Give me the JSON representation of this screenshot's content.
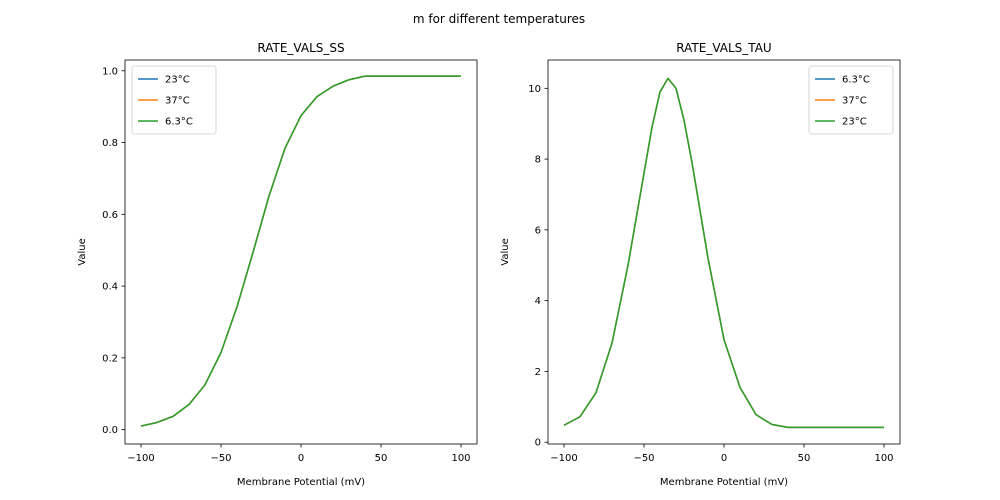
{
  "figure_title": "m for different temperatures",
  "chart_data": [
    {
      "type": "line",
      "title": "RATE_VALS_SS",
      "xlabel": "Membrane Potential (mV)",
      "ylabel": "Value",
      "xlim": [
        -110,
        110
      ],
      "ylim": [
        -0.04,
        1.03
      ],
      "x_ticks": [
        -100,
        -50,
        0,
        50,
        100
      ],
      "x_tick_labels": [
        "−100",
        "−50",
        "0",
        "50",
        "100"
      ],
      "y_ticks": [
        0.0,
        0.2,
        0.4,
        0.6,
        0.8,
        1.0
      ],
      "y_tick_labels": [
        "0.0",
        "0.2",
        "0.4",
        "0.6",
        "0.8",
        "1.0"
      ],
      "legend_position": "upper-left",
      "x": [
        -100,
        -90,
        -80,
        -70,
        -60,
        -50,
        -40,
        -30,
        -20,
        -10,
        0,
        10,
        20,
        30,
        40,
        50,
        60,
        70,
        80,
        90,
        100
      ],
      "series": [
        {
          "name": "23°C",
          "color": "#1f77b4",
          "values": [
            0.01,
            0.02,
            0.037,
            0.07,
            0.125,
            0.215,
            0.342,
            0.494,
            0.651,
            0.784,
            0.875,
            0.928,
            0.957,
            0.975,
            0.985,
            0.985,
            0.985,
            0.985,
            0.985,
            0.985,
            0.985
          ]
        },
        {
          "name": "37°C",
          "color": "#ff7f0e",
          "values": [
            0.01,
            0.02,
            0.037,
            0.07,
            0.125,
            0.215,
            0.342,
            0.494,
            0.651,
            0.784,
            0.875,
            0.928,
            0.957,
            0.975,
            0.985,
            0.985,
            0.985,
            0.985,
            0.985,
            0.985,
            0.985
          ]
        },
        {
          "name": "6.3°C",
          "color": "#2ca02c",
          "values": [
            0.01,
            0.02,
            0.037,
            0.07,
            0.125,
            0.215,
            0.342,
            0.494,
            0.651,
            0.784,
            0.875,
            0.928,
            0.957,
            0.975,
            0.985,
            0.985,
            0.985,
            0.985,
            0.985,
            0.985,
            0.985
          ]
        }
      ]
    },
    {
      "type": "line",
      "title": "RATE_VALS_TAU",
      "xlabel": "Membrane Potential (mV)",
      "ylabel": "Value",
      "xlim": [
        -110,
        110
      ],
      "ylim": [
        -0.05,
        10.8
      ],
      "x_ticks": [
        -100,
        -50,
        0,
        50,
        100
      ],
      "x_tick_labels": [
        "−100",
        "−50",
        "0",
        "50",
        "100"
      ],
      "y_ticks": [
        0,
        2,
        4,
        6,
        8,
        10
      ],
      "y_tick_labels": [
        "0",
        "2",
        "4",
        "6",
        "8",
        "10"
      ],
      "legend_position": "upper-right",
      "x": [
        -100,
        -90,
        -80,
        -70,
        -60,
        -50,
        -45,
        -40,
        -35,
        -30,
        -25,
        -20,
        -10,
        0,
        10,
        20,
        30,
        40,
        50,
        60,
        70,
        80,
        90,
        100
      ],
      "series": [
        {
          "name": "6.3°C",
          "color": "#1f77b4",
          "values": [
            0.48,
            0.72,
            1.4,
            2.8,
            5.0,
            7.6,
            8.9,
            9.9,
            10.28,
            10.0,
            9.1,
            7.9,
            5.2,
            2.9,
            1.55,
            0.78,
            0.5,
            0.42,
            0.42,
            0.42,
            0.42,
            0.42,
            0.42,
            0.42
          ]
        },
        {
          "name": "37°C",
          "color": "#ff7f0e",
          "values": [
            0.48,
            0.72,
            1.4,
            2.8,
            5.0,
            7.6,
            8.9,
            9.9,
            10.28,
            10.0,
            9.1,
            7.9,
            5.2,
            2.9,
            1.55,
            0.78,
            0.5,
            0.42,
            0.42,
            0.42,
            0.42,
            0.42,
            0.42,
            0.42
          ]
        },
        {
          "name": "23°C",
          "color": "#2ca02c",
          "values": [
            0.48,
            0.72,
            1.4,
            2.8,
            5.0,
            7.6,
            8.9,
            9.9,
            10.28,
            10.0,
            9.1,
            7.9,
            5.2,
            2.9,
            1.55,
            0.78,
            0.5,
            0.42,
            0.42,
            0.42,
            0.42,
            0.42,
            0.42,
            0.42
          ]
        }
      ]
    }
  ]
}
